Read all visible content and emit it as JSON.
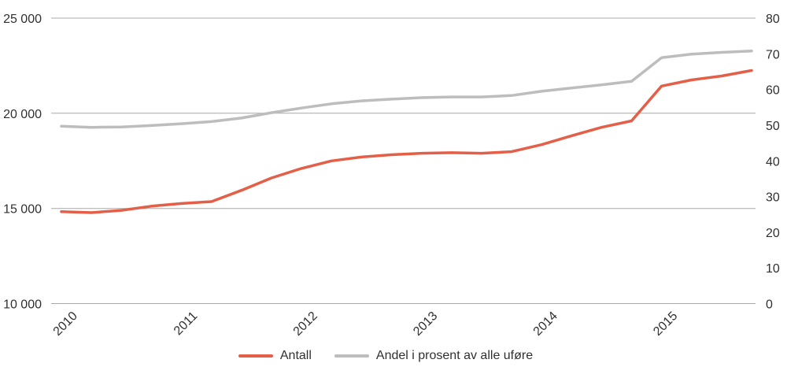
{
  "chart_data": {
    "type": "line",
    "title": "",
    "background": "#ffffff",
    "grid_color": "#a8a8a8",
    "label_color": "#303030",
    "legend_position": "bottom",
    "x_axis": {
      "years": [
        "2010",
        "2011",
        "2012",
        "2013",
        "2014",
        "2015"
      ],
      "points_per_year": 4,
      "label_rotation_deg": -45
    },
    "left_axis": {
      "min": 10000,
      "max": 25000,
      "tick_values": [
        10000,
        15000,
        20000,
        25000
      ],
      "tick_labels": [
        "10 000",
        "15 000",
        "20 000",
        "25 000"
      ]
    },
    "right_axis": {
      "min": 0,
      "max": 80,
      "tick_values": [
        0,
        10,
        20,
        30,
        40,
        50,
        60,
        70,
        80
      ],
      "tick_labels": [
        "0",
        "10",
        "20",
        "30",
        "40",
        "50",
        "60",
        "70",
        "80"
      ]
    },
    "series": [
      {
        "name": "Antall",
        "axis": "left",
        "color": "#e35f48",
        "values": [
          14830,
          14780,
          14900,
          15120,
          15260,
          15360,
          15950,
          16600,
          17100,
          17500,
          17700,
          17820,
          17900,
          17930,
          17900,
          17980,
          18350,
          18820,
          19260,
          19600,
          21430,
          21750,
          21960,
          22250
        ]
      },
      {
        "name": "Andel i prosent av alle uføre",
        "axis": "right",
        "color": "#bdbdbd",
        "values": [
          49.7,
          49.4,
          49.5,
          49.9,
          50.4,
          51.0,
          52.0,
          53.5,
          54.8,
          56.0,
          56.8,
          57.3,
          57.7,
          57.9,
          57.9,
          58.3,
          59.5,
          60.4,
          61.3,
          62.3,
          68.9,
          69.9,
          70.4,
          70.8
        ]
      }
    ]
  }
}
